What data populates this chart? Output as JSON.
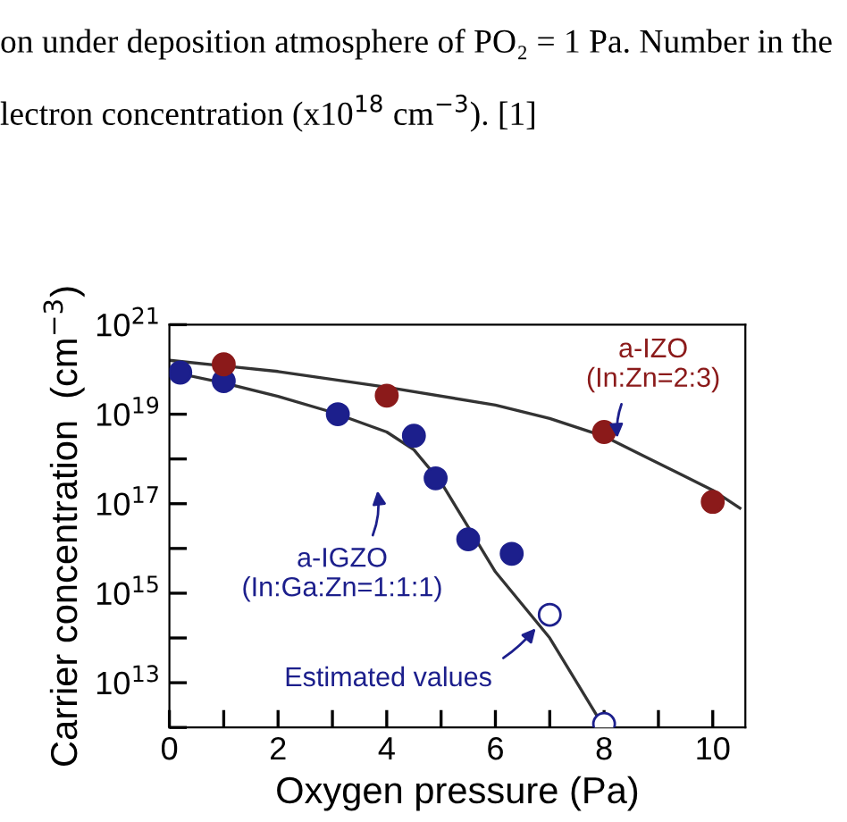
{
  "chart_data": {
    "type": "scatter",
    "xlabel": "Oxygen pressure (Pa)",
    "ylabel": "Carrier concentration  (cm$^{−3}$)",
    "log": "y",
    "xlim": [
      0,
      10.6
    ],
    "ylim": [
      1000000000000.0,
      1e+21
    ],
    "xticks": [
      0,
      {
        "value": 1,
        "label": null
      },
      2,
      {
        "value": 3,
        "label": null
      },
      4,
      {
        "value": 5,
        "label": null
      },
      6,
      {
        "value": 7,
        "label": null
      },
      8,
      {
        "value": 9,
        "label": null
      },
      10
    ],
    "yticks": [
      {
        "value": 1000000000000.0,
        "label": null
      },
      {
        "value": 10000000000000.0,
        "label": "10$^{13}$"
      },
      {
        "value": 100000000000000.0,
        "label": null
      },
      {
        "value": 1000000000000000.0,
        "label": "10$^{15}$"
      },
      {
        "value": 1e+16,
        "label": null
      },
      {
        "value": 1e+17,
        "label": "10$^{17}$"
      },
      {
        "value": 1e+18,
        "label": null
      },
      {
        "value": 1e+19,
        "label": "10$^{19}$"
      },
      {
        "value": 1e+20,
        "label": null
      },
      {
        "value": 1e+21,
        "label": "10$^{21}$"
      }
    ],
    "grid": false,
    "series": [
      {
        "type": "line",
        "color": "#333333",
        "x": [
          0,
          1,
          2,
          3,
          4,
          4.5,
          5,
          5.5,
          6,
          7,
          8
        ],
        "values": [
          9e+19,
          5e+19,
          2.5e+19,
          1.1e+19,
          4e+18,
          1.6e+18,
          3e+17,
          3e+16,
          3000000000000000.0,
          100000000000000.0,
          1000000000000.0
        ]
      },
      {
        "type": "line",
        "color": "#333333",
        "x": [
          0,
          2,
          4,
          6,
          7,
          8,
          9,
          10,
          10.5
        ],
        "values": [
          1.6e+20,
          9e+19,
          4e+19,
          1.6e+19,
          8e+18,
          3.2e+18,
          8e+17,
          2e+17,
          8e+16
        ]
      },
      {
        "color": "#1c1f8c",
        "marker": "circle",
        "x": [
          0.2,
          1,
          3.1,
          4.5,
          4.9,
          5.5,
          6.3
        ],
        "values": [
          8.5e+19,
          5.5e+19,
          1e+19,
          3.3e+18,
          3.7e+17,
          1.6e+16,
          7600000000000000.0
        ]
      },
      {
        "color": "#8b1a1a",
        "marker": "circle",
        "x": [
          1,
          4,
          8,
          10
        ],
        "values": [
          1.3e+20,
          2.6e+19,
          4e+18,
          1.1e+17
        ]
      },
      {
        "color": "#ffffff",
        "marker": "circle",
        "x": [
          7,
          8
        ],
        "values": [
          330000000000000.0,
          1200000000000.0
        ]
      }
    ],
    "annotations": [
      "on under deposition atmosphere of PO₂ = 1 Pa. Number in the",
      "lectron concentration (x10$^{18}$ cm$^{−3}$). [1]",
      {
        "text": "a-IZO\n(In:Zn=2:3)",
        "x": 8.25,
        "y": 2.3e+18
      },
      "a-IGZO\n(In:Ga:Zn=1:1:1)",
      {
        "text": "Estimated values",
        "x": 6.8,
        "y": 200000000000000.0
      }
    ]
  }
}
